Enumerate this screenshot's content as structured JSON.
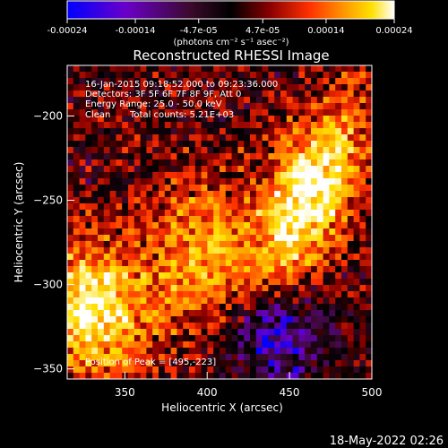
{
  "colorbar": {
    "tick_labels": [
      "-0.00024",
      "-0.00014",
      "-4.7e-05",
      "4.7e-05",
      "0.00014",
      "0.00024"
    ],
    "tick_values": [
      -0.00024,
      -0.00014,
      -4.7e-05,
      4.7e-05,
      0.00014,
      0.00024
    ],
    "range": [
      -0.00024,
      0.00024
    ],
    "unit_label": "(photons cm⁻² s⁻¹ asec⁻²)",
    "colors": [
      "#0000ff",
      "#6a00c8",
      "#3a0a2a",
      "#000000",
      "#8a0000",
      "#ff3000",
      "#ff9a00",
      "#ffe000",
      "#ffffff"
    ]
  },
  "chart_data": {
    "type": "heatmap",
    "title": "Reconstructed RHESSI Image",
    "xlabel": "Heliocentric X (arcsec)",
    "ylabel": "Heliocentric Y (arcsec)",
    "xlim": [
      315,
      500
    ],
    "ylim": [
      -356,
      -170
    ],
    "x_ticks": [
      350,
      400,
      450,
      500
    ],
    "y_ticks": [
      -350,
      -300,
      -250,
      -200
    ],
    "x_tick_labels": [
      "350",
      "400",
      "450",
      "500"
    ],
    "y_tick_labels": [
      "−350",
      "−300",
      "−250",
      "−200"
    ],
    "annotations": [
      "16-Jan-2015 09:18:52.000 to 09:23:36.000",
      "Detectors: 3F 5F 6F 7F 8F 9F, Att 0",
      "Energy Range: 25.0 - 50.0 keV",
      "Clean",
      "Total counts: 5.21E+03"
    ],
    "peak_label": "Position of Peak = [495,-223]",
    "peak": [
      495,
      -223
    ],
    "peak_value": 0.00024
  },
  "timestamp": "18-May-2022 02:26"
}
